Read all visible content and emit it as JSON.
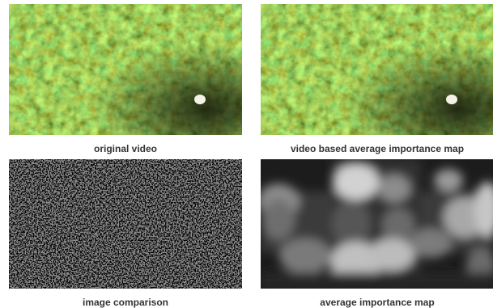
{
  "captions": {
    "original_video": "original video",
    "video_importance": "video based average importance map",
    "image_comparison": "image comparison",
    "average_importance": "average importance map"
  }
}
